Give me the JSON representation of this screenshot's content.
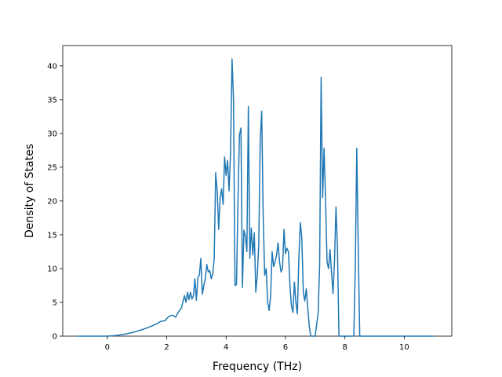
{
  "chart_data": {
    "type": "line",
    "title": "",
    "xlabel": "Frequency (THz)",
    "ylabel": "Density of States",
    "xlim": [
      -1.5,
      11.6
    ],
    "ylim": [
      0,
      43
    ],
    "xticks": [
      0,
      2,
      4,
      6,
      8,
      10
    ],
    "yticks": [
      0,
      5,
      10,
      15,
      20,
      25,
      30,
      35,
      40
    ],
    "grid": false,
    "legend": "none",
    "series": [
      {
        "color": "#1f77b4",
        "points": [
          [
            -1.0,
            0
          ],
          [
            0.0,
            0
          ],
          [
            0.3,
            0.1
          ],
          [
            0.6,
            0.3
          ],
          [
            0.9,
            0.6
          ],
          [
            1.2,
            1.0
          ],
          [
            1.5,
            1.5
          ],
          [
            1.7,
            1.9
          ],
          [
            1.8,
            2.2
          ],
          [
            1.95,
            2.3
          ],
          [
            2.0,
            2.6
          ],
          [
            2.1,
            3.0
          ],
          [
            2.2,
            3.1
          ],
          [
            2.3,
            2.8
          ],
          [
            2.4,
            3.6
          ],
          [
            2.5,
            4.2
          ],
          [
            2.55,
            5.2
          ],
          [
            2.6,
            6.0
          ],
          [
            2.65,
            5.0
          ],
          [
            2.7,
            6.5
          ],
          [
            2.75,
            5.4
          ],
          [
            2.8,
            6.5
          ],
          [
            2.85,
            5.5
          ],
          [
            2.9,
            6.0
          ],
          [
            2.95,
            8.5
          ],
          [
            3.0,
            5.3
          ],
          [
            3.05,
            8.7
          ],
          [
            3.1,
            9.0
          ],
          [
            3.15,
            11.5
          ],
          [
            3.2,
            6.2
          ],
          [
            3.25,
            7.5
          ],
          [
            3.3,
            8.5
          ],
          [
            3.35,
            10.6
          ],
          [
            3.4,
            9.5
          ],
          [
            3.45,
            9.7
          ],
          [
            3.5,
            8.5
          ],
          [
            3.55,
            9.2
          ],
          [
            3.6,
            11.5
          ],
          [
            3.65,
            24.2
          ],
          [
            3.7,
            21.5
          ],
          [
            3.75,
            15.8
          ],
          [
            3.8,
            20.5
          ],
          [
            3.85,
            21.8
          ],
          [
            3.9,
            19.5
          ],
          [
            3.95,
            26.5
          ],
          [
            4.0,
            23.8
          ],
          [
            4.05,
            26.0
          ],
          [
            4.1,
            21.5
          ],
          [
            4.15,
            27.0
          ],
          [
            4.2,
            41.0
          ],
          [
            4.25,
            35.0
          ],
          [
            4.3,
            7.5
          ],
          [
            4.35,
            7.6
          ],
          [
            4.4,
            20.0
          ],
          [
            4.45,
            29.8
          ],
          [
            4.5,
            30.8
          ],
          [
            4.55,
            7.2
          ],
          [
            4.6,
            15.7
          ],
          [
            4.65,
            14.8
          ],
          [
            4.7,
            12.5
          ],
          [
            4.75,
            34.0
          ],
          [
            4.8,
            11.5
          ],
          [
            4.85,
            16.0
          ],
          [
            4.9,
            12.0
          ],
          [
            4.95,
            15.3
          ],
          [
            5.0,
            6.5
          ],
          [
            5.05,
            9.0
          ],
          [
            5.1,
            13.5
          ],
          [
            5.15,
            29.0
          ],
          [
            5.2,
            33.3
          ],
          [
            5.25,
            17.5
          ],
          [
            5.3,
            9.0
          ],
          [
            5.35,
            10.0
          ],
          [
            5.4,
            5.0
          ],
          [
            5.45,
            3.8
          ],
          [
            5.5,
            6.0
          ],
          [
            5.55,
            12.5
          ],
          [
            5.6,
            10.3
          ],
          [
            5.65,
            11.0
          ],
          [
            5.7,
            12.0
          ],
          [
            5.75,
            13.8
          ],
          [
            5.8,
            11.0
          ],
          [
            5.85,
            9.5
          ],
          [
            5.9,
            10.0
          ],
          [
            5.95,
            15.8
          ],
          [
            6.0,
            12.2
          ],
          [
            6.05,
            13.0
          ],
          [
            6.1,
            12.5
          ],
          [
            6.15,
            7.5
          ],
          [
            6.2,
            4.5
          ],
          [
            6.25,
            3.5
          ],
          [
            6.3,
            8.0
          ],
          [
            6.35,
            5.0
          ],
          [
            6.4,
            3.3
          ],
          [
            6.45,
            11.5
          ],
          [
            6.5,
            16.8
          ],
          [
            6.55,
            14.5
          ],
          [
            6.6,
            6.5
          ],
          [
            6.65,
            5.2
          ],
          [
            6.7,
            7.0
          ],
          [
            6.75,
            4.2
          ],
          [
            6.8,
            1.5
          ],
          [
            6.85,
            0
          ],
          [
            7.0,
            0
          ],
          [
            7.1,
            3.5
          ],
          [
            7.15,
            10.5
          ],
          [
            7.2,
            38.3
          ],
          [
            7.25,
            20.5
          ],
          [
            7.3,
            27.8
          ],
          [
            7.35,
            20.0
          ],
          [
            7.4,
            11.0
          ],
          [
            7.45,
            10.0
          ],
          [
            7.5,
            12.8
          ],
          [
            7.55,
            9.5
          ],
          [
            7.6,
            6.3
          ],
          [
            7.65,
            11.0
          ],
          [
            7.7,
            19.1
          ],
          [
            7.75,
            13.0
          ],
          [
            7.8,
            0
          ],
          [
            8.0,
            0
          ],
          [
            8.3,
            0
          ],
          [
            8.35,
            10.0
          ],
          [
            8.4,
            27.8
          ],
          [
            8.45,
            13.0
          ],
          [
            8.5,
            0
          ],
          [
            9.0,
            0
          ],
          [
            10.0,
            0
          ],
          [
            11.0,
            0
          ]
        ]
      }
    ]
  }
}
